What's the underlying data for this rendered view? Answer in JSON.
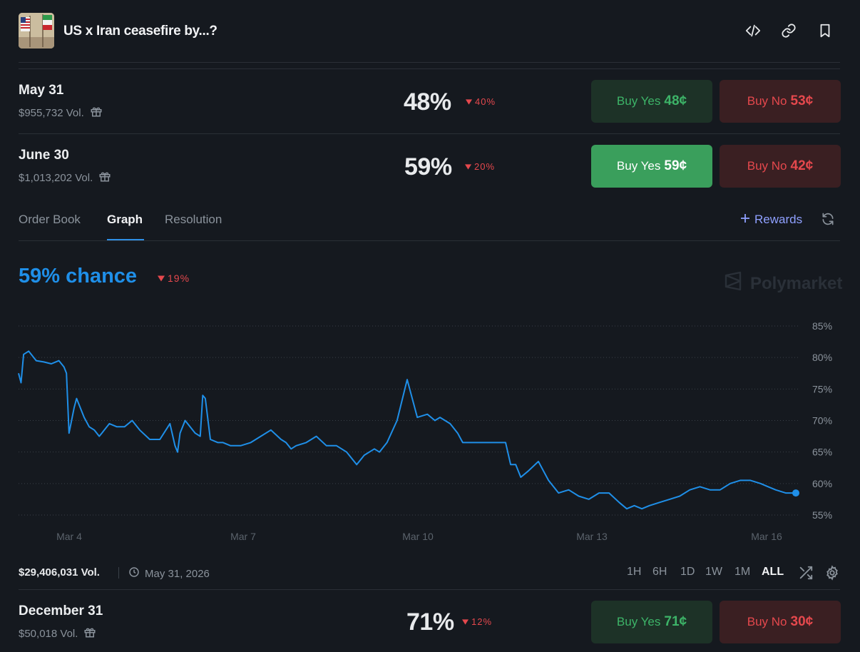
{
  "header": {
    "title": "US x Iran ceasefire by...?",
    "icons": [
      "code-icon",
      "link-icon",
      "bookmark-icon"
    ]
  },
  "markets": [
    {
      "date": "May 31",
      "volume": "$955,732 Vol.",
      "percent": "48%",
      "change": "40%",
      "change_dir": "down",
      "buy_yes_label": "Buy Yes",
      "buy_yes_price": "48¢",
      "buy_no_label": "Buy No",
      "buy_no_price": "53¢",
      "selected": false
    },
    {
      "date": "June 30",
      "volume": "$1,013,202 Vol.",
      "percent": "59%",
      "change": "20%",
      "change_dir": "down",
      "buy_yes_label": "Buy Yes",
      "buy_yes_price": "59¢",
      "buy_no_label": "Buy No",
      "buy_no_price": "42¢",
      "selected": true
    },
    {
      "date": "December 31",
      "volume": "$50,018 Vol.",
      "percent": "71%",
      "change": "12%",
      "change_dir": "down",
      "buy_yes_label": "Buy Yes",
      "buy_yes_price": "71¢",
      "buy_no_label": "Buy No",
      "buy_no_price": "30¢",
      "selected": false
    }
  ],
  "tabs": [
    {
      "label": "Order Book",
      "active": false
    },
    {
      "label": "Graph",
      "active": true
    },
    {
      "label": "Resolution",
      "active": false
    }
  ],
  "rewards_label": "Rewards",
  "graph": {
    "chance_label": "59% chance",
    "chance_change": "19%",
    "brand": "Polymarket",
    "total_volume": "$29,406,031 Vol.",
    "end_date": "May 31, 2026",
    "ranges": [
      "1H",
      "6H",
      "1D",
      "1W",
      "1M",
      "ALL"
    ],
    "active_range": "ALL"
  },
  "colors": {
    "accent": "#1f8fe8",
    "down": "#e5484d",
    "yes": "#3db468",
    "no": "#e5484d",
    "rewards": "#8fa0ff"
  },
  "chart_data": {
    "type": "line",
    "x_tick_labels": [
      "Mar 4",
      "Mar 7",
      "Mar 10",
      "Mar 13",
      "Mar 16"
    ],
    "y_tick_labels": [
      "85%",
      "80%",
      "75%",
      "70%",
      "65%",
      "60%",
      "55%"
    ],
    "ylim": [
      55,
      85
    ],
    "xlim": [
      0,
      15.4
    ],
    "grid": true,
    "series": [
      {
        "x": [
          0,
          0.05,
          0.1,
          0.2,
          0.35,
          0.5,
          0.65,
          0.8,
          0.9,
          0.95,
          1.0,
          1.1,
          1.15,
          1.2,
          1.3,
          1.4,
          1.5,
          1.6,
          1.65,
          1.7,
          1.8,
          1.95,
          2.1,
          2.25,
          2.4,
          2.6,
          2.8,
          3.0,
          3.1,
          3.15,
          3.2,
          3.3,
          3.5,
          3.6,
          3.65,
          3.7,
          3.8,
          3.95,
          4.05,
          4.2,
          4.4,
          4.6,
          4.8,
          5.0,
          5.2,
          5.3,
          5.4,
          5.5,
          5.7,
          5.9,
          6.1,
          6.3,
          6.5,
          6.7,
          6.85,
          6.95,
          7.05,
          7.15,
          7.3,
          7.5,
          7.7,
          7.9,
          8.1,
          8.25,
          8.35,
          8.45,
          8.55,
          8.6,
          8.7,
          8.8,
          9.0,
          9.2,
          9.4,
          9.55,
          9.65,
          9.75,
          9.85,
          9.95,
          10.1,
          10.3,
          10.5,
          10.7,
          10.9,
          11.1,
          11.3,
          11.5,
          11.7,
          11.9,
          12.05,
          12.2,
          12.35,
          12.5,
          12.7,
          12.9,
          13.1,
          13.3,
          13.5,
          13.7,
          13.9,
          14.1,
          14.3,
          14.5,
          14.7,
          14.85,
          15.0,
          15.2,
          15.4
        ],
        "y": [
          77.5,
          76.0,
          80.5,
          81.0,
          79.5,
          79.3,
          79.0,
          79.5,
          78.5,
          77.5,
          68.0,
          72.0,
          73.5,
          72.5,
          70.5,
          69.0,
          68.5,
          67.5,
          68.0,
          68.5,
          69.5,
          69.0,
          69.0,
          70.0,
          68.5,
          67.0,
          67.0,
          69.5,
          66.0,
          65.0,
          68.0,
          70.0,
          68.0,
          67.5,
          74.0,
          73.5,
          67.0,
          66.5,
          66.5,
          66.0,
          66.0,
          66.5,
          67.5,
          68.5,
          67.0,
          66.5,
          65.5,
          66.0,
          66.5,
          67.5,
          66.0,
          66.0,
          65.0,
          63.0,
          64.5,
          65.0,
          65.5,
          65.0,
          66.5,
          70.0,
          76.5,
          70.5,
          71.0,
          70.0,
          70.5,
          70.0,
          69.5,
          69.0,
          68.0,
          66.5,
          66.5,
          66.5,
          66.5,
          66.5,
          66.5,
          63.0,
          63.0,
          61.0,
          62.0,
          63.5,
          60.5,
          58.5,
          59.0,
          58.0,
          57.5,
          58.5,
          58.5,
          57.0,
          56.0,
          56.5,
          56.0,
          56.5,
          57.0,
          57.5,
          58.0,
          59.0,
          59.5,
          59.0,
          59.0,
          60.0,
          60.5,
          60.5,
          60.0,
          59.5,
          59.0,
          58.5,
          58.5
        ]
      }
    ]
  }
}
